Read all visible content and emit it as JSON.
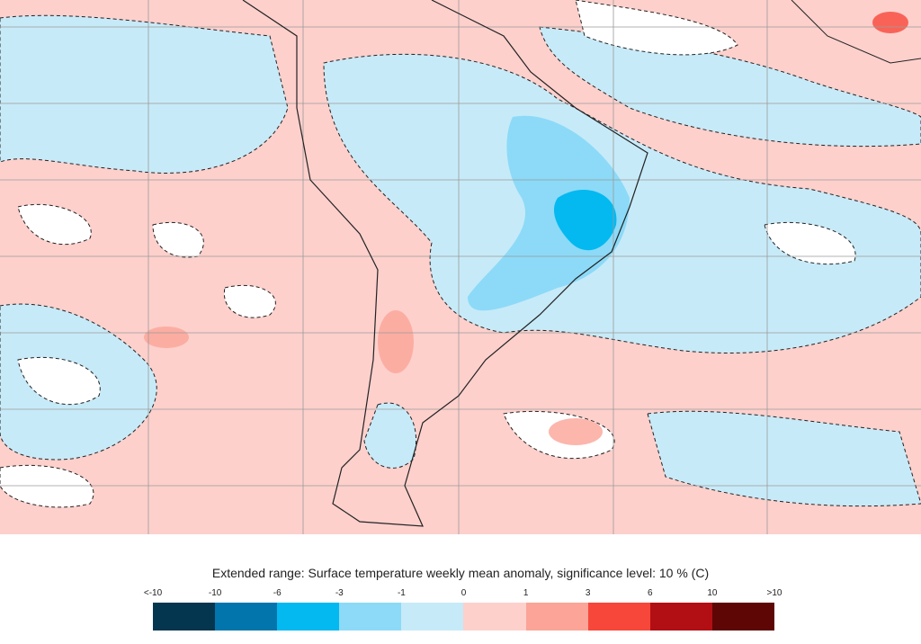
{
  "legend": {
    "title": "Extended range: Surface temperature weekly mean anomaly, significance level: 10 % (C)",
    "tick_labels": [
      "<-10",
      "-10",
      "-6",
      "-3",
      "-1",
      "0",
      "1",
      "3",
      "6",
      "10",
      ">10"
    ],
    "colors": [
      "#04364f",
      "#0275ad",
      "#03b9f0",
      "#8cdaf7",
      "#c7eaf8",
      "#fdd0cc",
      "#fba497",
      "#f7473a",
      "#b20f14",
      "#5e0505"
    ]
  },
  "map": {
    "region": "South America and surrounding oceans",
    "background_anomaly_color": "#fdd0cc",
    "land_outline_color": "#222222",
    "grid_color": "#9a9a9a",
    "significance_contour": "dashed"
  }
}
